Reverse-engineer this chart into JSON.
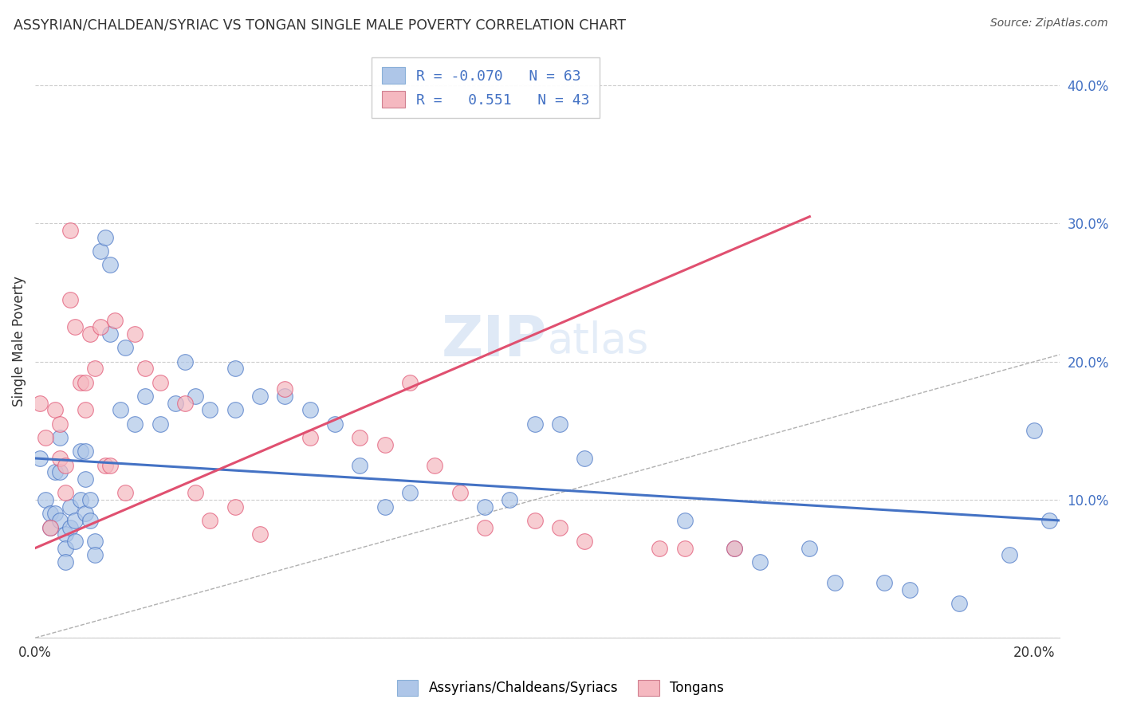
{
  "title": "ASSYRIAN/CHALDEAN/SYRIAC VS TONGAN SINGLE MALE POVERTY CORRELATION CHART",
  "source": "Source: ZipAtlas.com",
  "ylabel": "Single Male Poverty",
  "color_blue": "#aec6e8",
  "color_pink": "#f5b8c0",
  "color_blue_line": "#4472c4",
  "color_pink_line": "#e05070",
  "color_diag": "#b0b0b0",
  "watermark_zip": "ZIP",
  "watermark_atlas": "atlas",
  "xlim": [
    0.0,
    0.205
  ],
  "ylim": [
    0.0,
    0.43
  ],
  "blue_line_x": [
    0.0,
    0.205
  ],
  "blue_line_y": [
    0.13,
    0.085
  ],
  "pink_line_x": [
    0.0,
    0.155
  ],
  "pink_line_y": [
    0.065,
    0.305
  ],
  "blue_scatter_x": [
    0.001,
    0.002,
    0.003,
    0.003,
    0.004,
    0.004,
    0.005,
    0.005,
    0.005,
    0.006,
    0.006,
    0.006,
    0.007,
    0.007,
    0.008,
    0.008,
    0.009,
    0.009,
    0.01,
    0.01,
    0.01,
    0.011,
    0.011,
    0.012,
    0.012,
    0.013,
    0.014,
    0.015,
    0.015,
    0.017,
    0.018,
    0.02,
    0.022,
    0.025,
    0.028,
    0.03,
    0.032,
    0.035,
    0.04,
    0.04,
    0.045,
    0.05,
    0.055,
    0.06,
    0.065,
    0.07,
    0.075,
    0.09,
    0.095,
    0.1,
    0.105,
    0.11,
    0.13,
    0.14,
    0.145,
    0.155,
    0.16,
    0.17,
    0.175,
    0.185,
    0.195,
    0.2,
    0.203
  ],
  "blue_scatter_y": [
    0.13,
    0.1,
    0.09,
    0.08,
    0.12,
    0.09,
    0.145,
    0.12,
    0.085,
    0.075,
    0.065,
    0.055,
    0.095,
    0.08,
    0.085,
    0.07,
    0.135,
    0.1,
    0.135,
    0.115,
    0.09,
    0.1,
    0.085,
    0.07,
    0.06,
    0.28,
    0.29,
    0.27,
    0.22,
    0.165,
    0.21,
    0.155,
    0.175,
    0.155,
    0.17,
    0.2,
    0.175,
    0.165,
    0.165,
    0.195,
    0.175,
    0.175,
    0.165,
    0.155,
    0.125,
    0.095,
    0.105,
    0.095,
    0.1,
    0.155,
    0.155,
    0.13,
    0.085,
    0.065,
    0.055,
    0.065,
    0.04,
    0.04,
    0.035,
    0.025,
    0.06,
    0.15,
    0.085
  ],
  "pink_scatter_x": [
    0.001,
    0.002,
    0.003,
    0.004,
    0.005,
    0.005,
    0.006,
    0.006,
    0.007,
    0.007,
    0.008,
    0.009,
    0.01,
    0.01,
    0.011,
    0.012,
    0.013,
    0.014,
    0.015,
    0.016,
    0.018,
    0.02,
    0.022,
    0.025,
    0.03,
    0.032,
    0.035,
    0.04,
    0.045,
    0.05,
    0.055,
    0.065,
    0.07,
    0.075,
    0.08,
    0.085,
    0.09,
    0.1,
    0.105,
    0.11,
    0.125,
    0.13,
    0.14
  ],
  "pink_scatter_y": [
    0.17,
    0.145,
    0.08,
    0.165,
    0.155,
    0.13,
    0.125,
    0.105,
    0.295,
    0.245,
    0.225,
    0.185,
    0.185,
    0.165,
    0.22,
    0.195,
    0.225,
    0.125,
    0.125,
    0.23,
    0.105,
    0.22,
    0.195,
    0.185,
    0.17,
    0.105,
    0.085,
    0.095,
    0.075,
    0.18,
    0.145,
    0.145,
    0.14,
    0.185,
    0.125,
    0.105,
    0.08,
    0.085,
    0.08,
    0.07,
    0.065,
    0.065,
    0.065
  ]
}
